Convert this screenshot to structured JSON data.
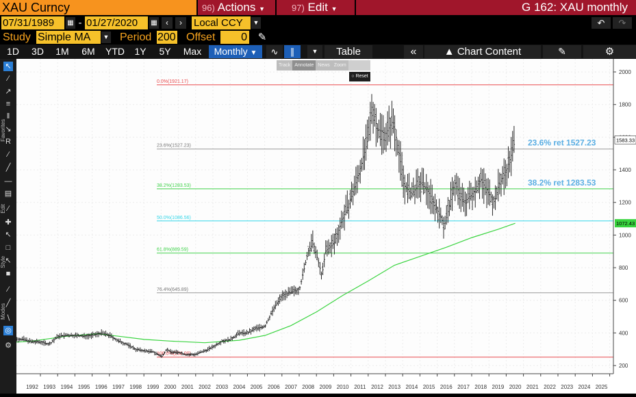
{
  "header": {
    "ticker": "XAU Curncy",
    "actions_num": "96)",
    "actions_label": "Actions",
    "edit_num": "97)",
    "edit_label": "Edit",
    "function_title": "G 162: XAU monthly"
  },
  "range": {
    "start": "07/31/1989",
    "dash": "-",
    "end": "01/27/2020",
    "currency": "Local CCY"
  },
  "study": {
    "study_label": "Study",
    "study_value": "Simple MA",
    "period_label": "Period",
    "period_value": "200",
    "offset_label": "Offset",
    "offset_value": "0"
  },
  "toolbar": {
    "periods": [
      "1D",
      "3D",
      "1M",
      "6M",
      "YTD",
      "1Y",
      "5Y",
      "Max"
    ],
    "frequency": "Monthly",
    "table_label": "Table",
    "chart_content_label": "Chart Content"
  },
  "floating_tools": {
    "track": "Track",
    "annotate": "Annotate",
    "news": "News",
    "zoom": "Zoom",
    "reset": "Reset"
  },
  "side_labels": [
    "Favorites",
    "Edit",
    "Style",
    "Modes"
  ],
  "colors": {
    "fib_red": "#e8474a",
    "fib_green": "#3fd24a",
    "fib_cyan": "#33d6e8",
    "fib_gray": "#9a9a9a",
    "ma_green": "#39d43f",
    "annotation_blue": "#5aaee3",
    "orange": "#f7931e",
    "title_red": "#a0162b"
  },
  "chart_data": {
    "type": "candlestick",
    "x_axis": {
      "years": [
        "1992",
        "1993",
        "1994",
        "1995",
        "1996",
        "1997",
        "1998",
        "1999",
        "2000",
        "2001",
        "2002",
        "2003",
        "2004",
        "2005",
        "2006",
        "2007",
        "2008",
        "2009",
        "2010",
        "2011",
        "2012",
        "2013",
        "2014",
        "2015",
        "2016",
        "2017",
        "2018",
        "2019",
        "2020",
        "2021",
        "2022",
        "2023",
        "2024",
        "2025"
      ]
    },
    "y_axis": {
      "ticks": [
        200,
        400,
        600,
        800,
        1000,
        1200,
        1400,
        1600,
        1800,
        2000
      ],
      "range": [
        150,
        2080
      ]
    },
    "fib_levels": [
      {
        "label": "0.0%(1921.17)",
        "value": 1921.17,
        "color": "red"
      },
      {
        "label": "23.6%(1527.23)",
        "value": 1527.23,
        "color": "gray"
      },
      {
        "label": "38.2%(1283.53)",
        "value": 1283.53,
        "color": "green"
      },
      {
        "label": "50.0%(1086.56)",
        "value": 1086.56,
        "color": "cyan"
      },
      {
        "label": "61.8%(889.59)",
        "value": 889.59,
        "color": "green"
      },
      {
        "label": "76.4%(645.89)",
        "value": 645.89,
        "color": "gray"
      },
      {
        "label": "100.0%(252.00)",
        "value": 252.0,
        "color": "red"
      }
    ],
    "annotations": [
      {
        "text": "23.6% ret 1527.23",
        "value": 1527.23
      },
      {
        "text": "38.2% ret 1283.53",
        "value": 1283.53
      }
    ],
    "last_price": {
      "label": "1583.33",
      "value": 1583.33
    },
    "ma_last": {
      "label": "1072.43",
      "value": 1072.43
    },
    "price_path": [
      [
        1990.6,
        360
      ],
      [
        1991.5,
        362
      ],
      [
        1992.0,
        345
      ],
      [
        1992.5,
        345
      ],
      [
        1993.0,
        330
      ],
      [
        1993.5,
        380
      ],
      [
        1994.0,
        385
      ],
      [
        1994.5,
        385
      ],
      [
        1995.0,
        380
      ],
      [
        1995.5,
        385
      ],
      [
        1996.0,
        400
      ],
      [
        1996.5,
        385
      ],
      [
        1997.0,
        350
      ],
      [
        1997.5,
        330
      ],
      [
        1998.0,
        300
      ],
      [
        1998.5,
        290
      ],
      [
        1999.0,
        285
      ],
      [
        1999.5,
        255
      ],
      [
        1999.8,
        300
      ],
      [
        2000.0,
        285
      ],
      [
        2000.5,
        280
      ],
      [
        2001.0,
        265
      ],
      [
        2001.5,
        270
      ],
      [
        2002.0,
        290
      ],
      [
        2002.5,
        315
      ],
      [
        2003.0,
        350
      ],
      [
        2003.5,
        360
      ],
      [
        2004.0,
        400
      ],
      [
        2004.5,
        400
      ],
      [
        2005.0,
        430
      ],
      [
        2005.5,
        440
      ],
      [
        2006.0,
        550
      ],
      [
        2006.5,
        630
      ],
      [
        2007.0,
        650
      ],
      [
        2007.5,
        670
      ],
      [
        2008.0,
        900
      ],
      [
        2008.3,
        950
      ],
      [
        2008.8,
        750
      ],
      [
        2009.0,
        900
      ],
      [
        2009.5,
        950
      ],
      [
        2010.0,
        1100
      ],
      [
        2010.5,
        1230
      ],
      [
        2011.0,
        1400
      ],
      [
        2011.5,
        1600
      ],
      [
        2011.7,
        1800
      ],
      [
        2012.0,
        1650
      ],
      [
        2012.5,
        1620
      ],
      [
        2012.9,
        1700
      ],
      [
        2013.0,
        1660
      ],
      [
        2013.3,
        1480
      ],
      [
        2013.6,
        1300
      ],
      [
        2014.0,
        1250
      ],
      [
        2014.5,
        1320
      ],
      [
        2015.0,
        1260
      ],
      [
        2015.5,
        1150
      ],
      [
        2015.9,
        1060
      ],
      [
        2016.0,
        1100
      ],
      [
        2016.5,
        1320
      ],
      [
        2017.0,
        1200
      ],
      [
        2017.5,
        1250
      ],
      [
        2018.0,
        1340
      ],
      [
        2018.5,
        1250
      ],
      [
        2018.8,
        1200
      ],
      [
        2019.0,
        1290
      ],
      [
        2019.5,
        1400
      ],
      [
        2019.8,
        1500
      ],
      [
        2020.0,
        1583
      ]
    ],
    "ma_path": [
      [
        1990.6,
        340
      ],
      [
        1992.0,
        350
      ],
      [
        1994.0,
        380
      ],
      [
        1995.8,
        395
      ],
      [
        1997.0,
        380
      ],
      [
        1998.5,
        360
      ],
      [
        2000.0,
        350
      ],
      [
        2002.0,
        340
      ],
      [
        2004.0,
        355
      ],
      [
        2005.5,
        385
      ],
      [
        2007.0,
        445
      ],
      [
        2008.5,
        530
      ],
      [
        2010.0,
        630
      ],
      [
        2011.5,
        720
      ],
      [
        2013.0,
        815
      ],
      [
        2014.5,
        870
      ],
      [
        2016.0,
        925
      ],
      [
        2017.5,
        985
      ],
      [
        2019.0,
        1035
      ],
      [
        2020.0,
        1072
      ]
    ]
  }
}
